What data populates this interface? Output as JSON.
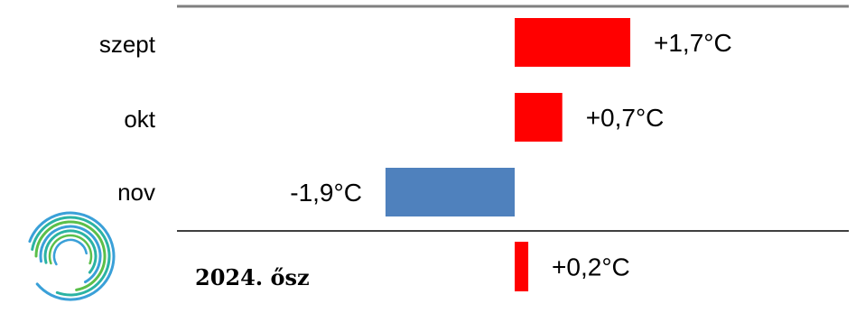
{
  "chart_data": {
    "type": "bar",
    "orientation": "horizontal",
    "categories": [
      "szept",
      "okt",
      "nov"
    ],
    "values": [
      1.7,
      0.7,
      -1.9
    ],
    "value_labels": [
      "+1,7°C",
      "+0,7°C",
      "-1,9°C"
    ],
    "summary": {
      "label": "2024. ősz",
      "value": 0.2,
      "value_label": "+0,2°C"
    },
    "unit": "°C",
    "xlim": [
      -1.9,
      1.7
    ],
    "grid": false,
    "colors": {
      "positive": "#ff0000",
      "negative": "#4f81bd",
      "top_rule": "#808080",
      "separator": "#000000"
    }
  },
  "logo": {
    "icon": "spiral-logo-icon",
    "colors": [
      "#3aa0d8",
      "#2bb3a3",
      "#5bbf4a"
    ]
  }
}
